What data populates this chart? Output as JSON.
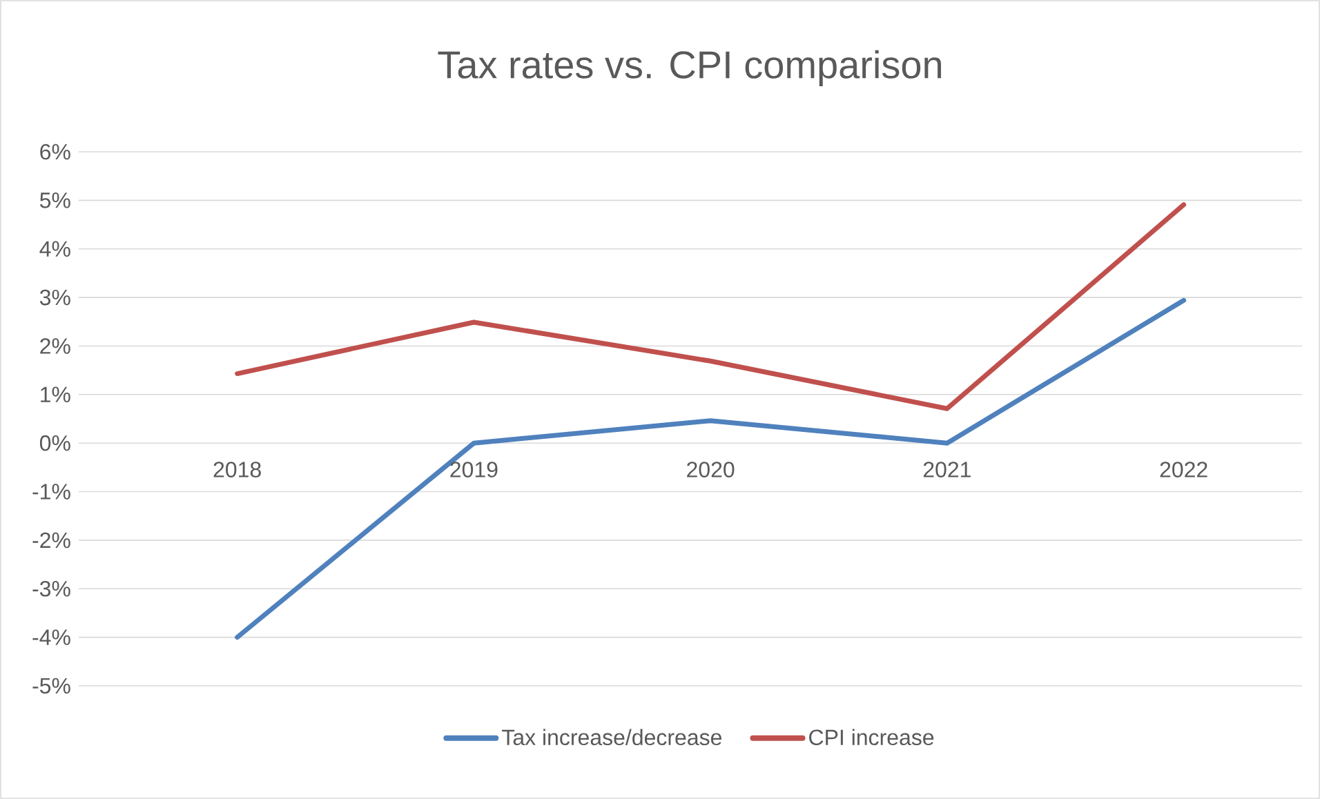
{
  "chart_data": {
    "type": "line",
    "title": "Tax rates vs. CPI comparison",
    "categories": [
      "2018",
      "2019",
      "2020",
      "2021",
      "2022"
    ],
    "series": [
      {
        "name": "Tax increase/decrease",
        "color": "#4f81bd",
        "values": [
          -4,
          0,
          0.46,
          0,
          2.94
        ]
      },
      {
        "name": "CPI increase",
        "color": "#c0504d",
        "values": [
          1.43,
          2.49,
          1.69,
          0.71,
          4.91
        ]
      }
    ],
    "ylim": [
      -5,
      6
    ],
    "yticks": [
      {
        "value": -5,
        "label": "-5%"
      },
      {
        "value": -4,
        "label": "-4%"
      },
      {
        "value": -3,
        "label": "-3%"
      },
      {
        "value": -2,
        "label": "-2%"
      },
      {
        "value": -1,
        "label": "-1%"
      },
      {
        "value": 0,
        "label": "0%"
      },
      {
        "value": 1,
        "label": "1%"
      },
      {
        "value": 2,
        "label": "2%"
      },
      {
        "value": 3,
        "label": "3%"
      },
      {
        "value": 4,
        "label": "4%"
      },
      {
        "value": 5,
        "label": "5%"
      },
      {
        "value": 6,
        "label": "6%"
      }
    ],
    "grid": "y",
    "legend": "bottom",
    "marker": "none",
    "line_style": "solid"
  }
}
